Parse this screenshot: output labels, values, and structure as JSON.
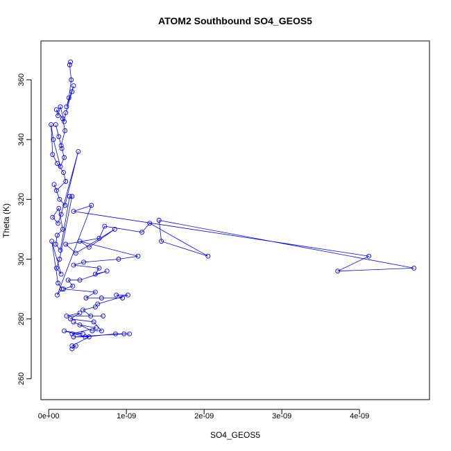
{
  "chart_data": {
    "type": "scatter",
    "title": "ATOM2 Southbound SO4_GEOS5",
    "xlabel": "SO4_GEOS5",
    "ylabel": "Theta (K)",
    "xlim": [
      -1e-10,
      4.9e-09
    ],
    "ylim": [
      253,
      373
    ],
    "x_ticks": [
      0,
      1e-09,
      2e-09,
      3e-09,
      4e-09
    ],
    "x_tick_labels": [
      "0e+00",
      "1e-09",
      "2e-09",
      "3e-09",
      "4e-09"
    ],
    "y_ticks": [
      260,
      280,
      300,
      320,
      340,
      360
    ],
    "y_tick_labels": [
      "260",
      "280",
      "300",
      "320",
      "340",
      "360"
    ],
    "grid": false,
    "legend": "none",
    "markers": "open-circle",
    "connected": true,
    "series_color": "#0000ff",
    "series": [
      {
        "x": [
          2.8e-10,
          2.7e-10,
          2.9e-10,
          2.6e-10,
          2.3e-10,
          3.2e-10,
          3e-10,
          2.2e-10,
          2e-10,
          1.5e-10,
          1.2e-10,
          1e-10,
          1.8e-10,
          2.1e-10,
          1.6e-10,
          1.3e-10,
          9e-11,
          1.7e-10,
          2e-10,
          1.5e-10,
          6e-11,
          3e-11,
          5e-11,
          1.1e-10,
          1.9e-10,
          2.2e-10,
          1e-10,
          7e-11,
          1.4e-10,
          2.1e-10,
          3.8e-10,
          1.6e-10,
          1.2e-10,
          5e-11,
          1.3e-10,
          1.8e-10,
          1.1e-10,
          9e-11,
          1.5e-10,
          2.7e-10,
          3e-10,
          1.4e-10,
          1e-10,
          1.6e-10,
          4e-11,
          1.2e-10,
          1.7e-10,
          1.1e-10,
          5.5e-10,
          3.2e-10,
          4.12e-09,
          3.72e-09,
          4.7e-09,
          1.42e-09,
          1.45e-09,
          2.05e-09,
          1.3e-09,
          1.2e-09,
          7.2e-10,
          6.5e-10,
          2.2e-10,
          3.5e-10,
          8.5e-10,
          5.2e-10,
          4e-10,
          1.15e-09,
          9e-10,
          4.5e-10,
          3.2e-10,
          6.5e-10,
          6e-10,
          7.5e-10,
          4e-10,
          2.5e-10,
          3.1e-10,
          1.9e-10,
          6e-10,
          4.8e-10,
          6.8e-10,
          9.5e-10,
          8.7e-10,
          1.02e-09,
          6.3e-10,
          6e-10,
          4.4e-10,
          5.4e-10,
          7e-10,
          2.3e-10,
          4e-10,
          2.8e-10,
          5.8e-10,
          6.8e-10,
          5.6e-10,
          3.2e-10,
          4e-10,
          6.1e-10,
          3e-10,
          4.4e-10,
          2e-10,
          4.7e-10,
          8.6e-10,
          1.04e-09,
          9.7e-10,
          3.2e-10,
          5.2e-10,
          3e-10,
          3.5e-10,
          3e-10
        ],
        "y": [
          366,
          365,
          360,
          354,
          351,
          358,
          356,
          349,
          346,
          351,
          348,
          350,
          347,
          343,
          338,
          341,
          345,
          337,
          334,
          331,
          340,
          345,
          335,
          332,
          329,
          326,
          323,
          325,
          320,
          318,
          336,
          315,
          312,
          314,
          317,
          310,
          308,
          305,
          303,
          321,
          321,
          300,
          297,
          295,
          306,
          292,
          290,
          288,
          318,
          316,
          301,
          296,
          297,
          313,
          306,
          301,
          312,
          309,
          311,
          307,
          305,
          302,
          310,
          304,
          306,
          301,
          300,
          299,
          298,
          297,
          295,
          296,
          293,
          293,
          291,
          290,
          289,
          287,
          287,
          287,
          288,
          288,
          285,
          284,
          283,
          281,
          281,
          281,
          282,
          280,
          279,
          276,
          276,
          279,
          278,
          277,
          275,
          275,
          276,
          274,
          275,
          275,
          275,
          274,
          274,
          271,
          271,
          270
        ]
      }
    ]
  }
}
